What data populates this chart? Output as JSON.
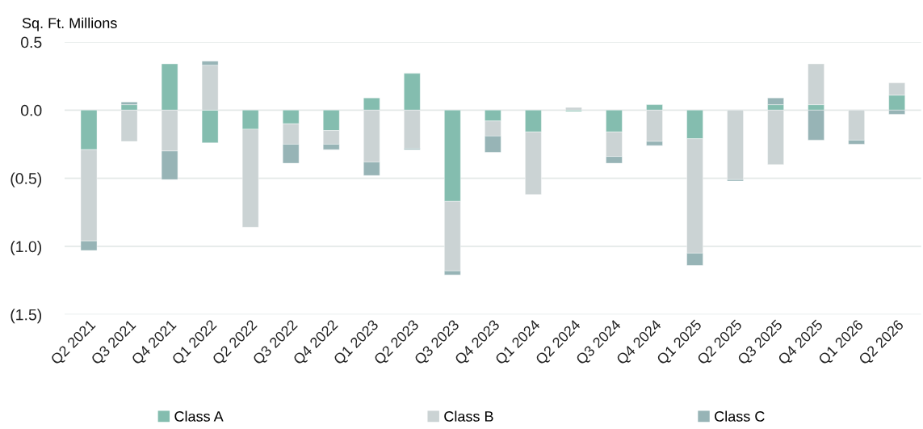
{
  "chart_data": {
    "type": "bar",
    "stacked": true,
    "ylabel": "Sq. Ft. Millions",
    "categories": [
      "Q2 2021",
      "Q3 2021",
      "Q4 2021",
      "Q1 2022",
      "Q2 2022",
      "Q3 2022",
      "Q4 2022",
      "Q1 2023",
      "Q2 2023",
      "Q3 2023",
      "Q4 2023",
      "Q1 2024",
      "Q2 2024",
      "Q3 2024",
      "Q4 2024",
      "Q1 2025",
      "Q2 2025",
      "Q3 2025",
      "Q4 2025",
      "Q1 2026",
      "Q2 2026"
    ],
    "series": [
      {
        "name": "Class A",
        "color": "#84bdaf",
        "values": [
          -0.29,
          0.04,
          0.34,
          -0.24,
          -0.14,
          -0.1,
          -0.15,
          0.09,
          0.27,
          -0.67,
          -0.08,
          -0.16,
          -0.01,
          -0.16,
          0.04,
          -0.21,
          null,
          0.04,
          0.04,
          null,
          0.11
        ]
      },
      {
        "name": "Class B",
        "color": "#cbd3d4",
        "values": [
          -0.67,
          -0.23,
          -0.3,
          0.33,
          -0.72,
          -0.15,
          -0.1,
          -0.38,
          -0.28,
          -0.51,
          -0.11,
          -0.46,
          0.02,
          -0.18,
          -0.23,
          -0.84,
          -0.51,
          -0.4,
          0.3,
          -0.22,
          0.09
        ]
      },
      {
        "name": "Class C",
        "color": "#97b4b6",
        "values": [
          -0.07,
          0.02,
          -0.21,
          0.03,
          null,
          -0.14,
          -0.04,
          -0.1,
          -0.01,
          -0.03,
          -0.12,
          null,
          null,
          -0.05,
          -0.03,
          -0.09,
          -0.01,
          0.05,
          -0.22,
          -0.03,
          -0.03
        ]
      }
    ],
    "ylim": [
      -1.5,
      0.5
    ],
    "yticks": [
      0.5,
      {
        "value": 0,
        "label": "0.0"
      },
      {
        "value": -0.5,
        "label": "(0.5)"
      },
      {
        "value": -1,
        "label": "(1.0)"
      },
      {
        "value": -1.5,
        "label": "(1.5)"
      }
    ],
    "grid": "y",
    "legend": "bottom"
  }
}
